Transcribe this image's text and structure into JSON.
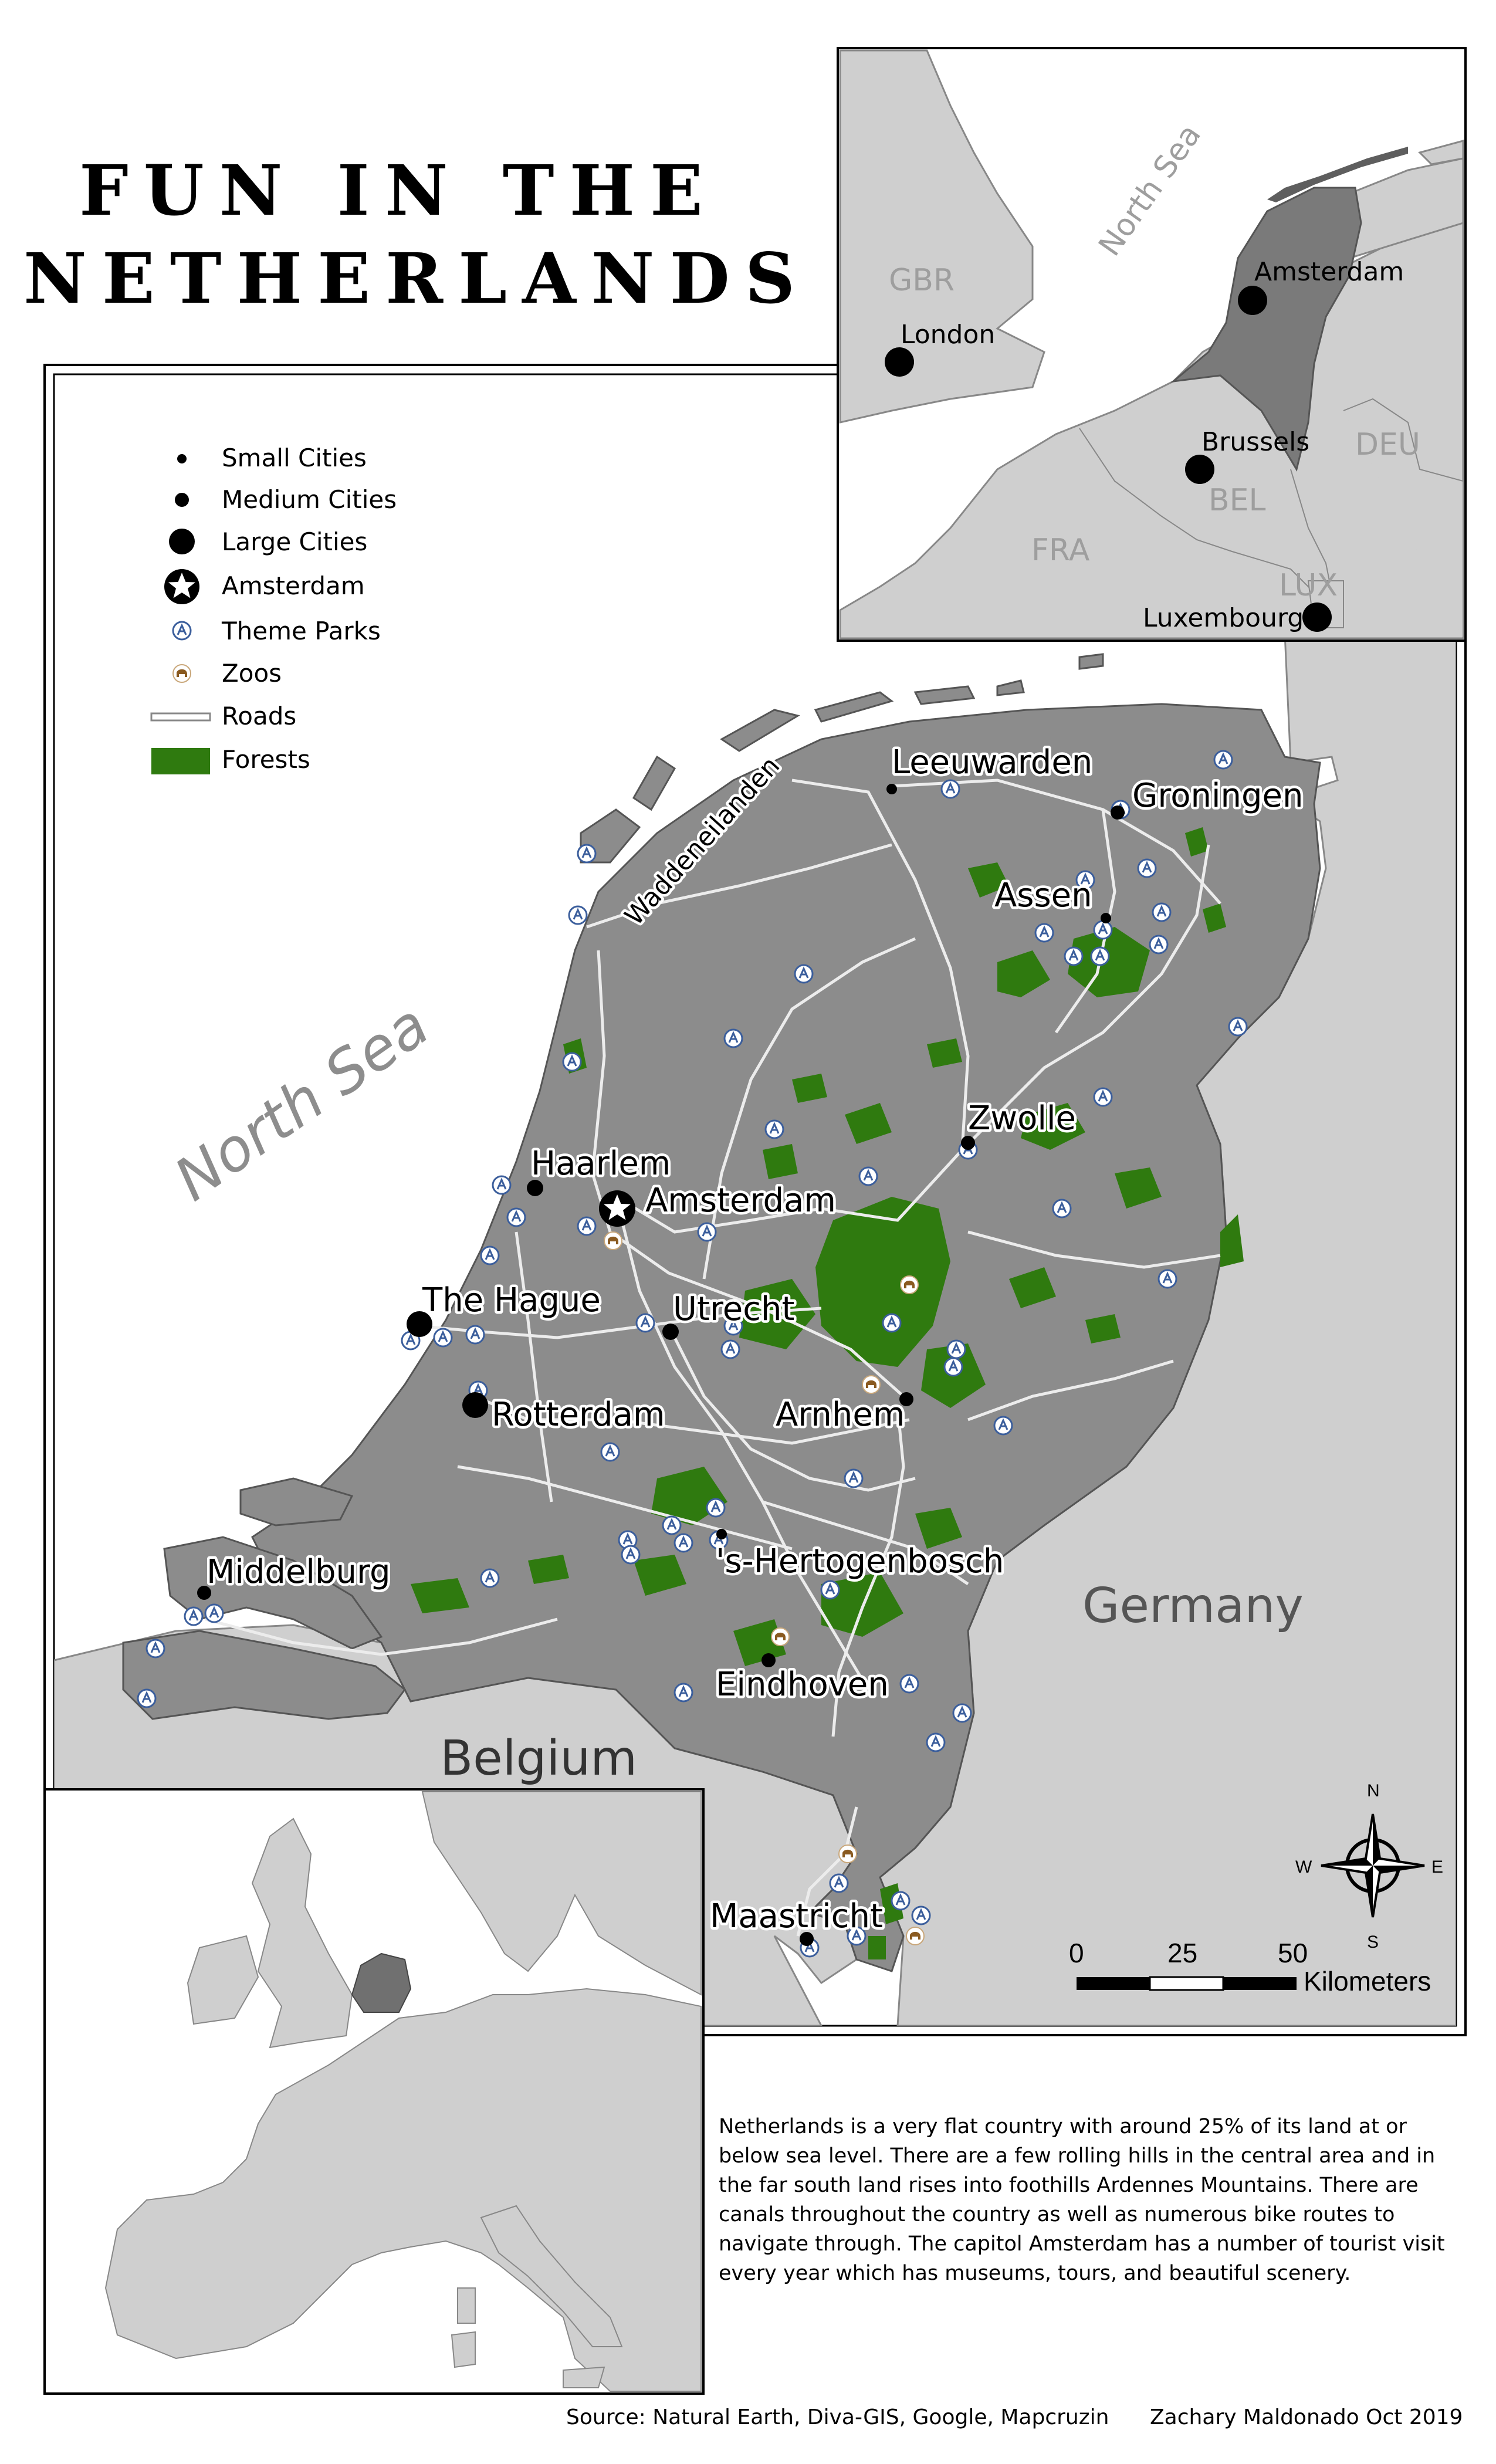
{
  "title": {
    "line1": "FUN IN THE",
    "line2": "NETHERLANDS"
  },
  "legend": {
    "small_cities": "Small Cities",
    "medium_cities": "Medium Cities",
    "large_cities": "Large Cities",
    "capital": "Amsterdam",
    "theme_parks": "Theme Parks",
    "zoos": "Zoos",
    "roads": "Roads",
    "forests": "Forests"
  },
  "main_map": {
    "sea_label": "North Sea",
    "islands_label": "Waddeneilanden",
    "countries": {
      "germany": "Germany",
      "belgium": "Belgium"
    },
    "cities": [
      {
        "id": "leeuwarden",
        "name": "Leeuwarden",
        "size": "small"
      },
      {
        "id": "groningen",
        "name": "Groningen",
        "size": "medium"
      },
      {
        "id": "assen",
        "name": "Assen",
        "size": "small"
      },
      {
        "id": "zwolle",
        "name": "Zwolle",
        "size": "medium"
      },
      {
        "id": "haarlem",
        "name": "Haarlem",
        "size": "medium"
      },
      {
        "id": "amsterdam",
        "name": "Amsterdam",
        "size": "capital"
      },
      {
        "id": "the-hague",
        "name": "The Hague",
        "size": "large"
      },
      {
        "id": "utrecht",
        "name": "Utrecht",
        "size": "medium"
      },
      {
        "id": "rotterdam",
        "name": "Rotterdam",
        "size": "large"
      },
      {
        "id": "arnhem",
        "name": "Arnhem",
        "size": "medium"
      },
      {
        "id": "middelburg",
        "name": "Middelburg",
        "size": "medium"
      },
      {
        "id": "s-hertogenbosch",
        "name": "'s-Hertogenbosch",
        "size": "small"
      },
      {
        "id": "eindhoven",
        "name": "Eindhoven",
        "size": "medium"
      },
      {
        "id": "maastricht",
        "name": "Maastricht",
        "size": "medium"
      }
    ]
  },
  "inset_top": {
    "sea_label": "North Sea",
    "countries": {
      "gbr": "GBR",
      "deu": "DEU",
      "bel": "BEL",
      "fra": "FRA",
      "lux": "LUX"
    },
    "cities": {
      "london": "London",
      "amsterdam": "Amsterdam",
      "brussels": "Brussels",
      "luxembourg": "Luxembourg"
    }
  },
  "scale_bar": {
    "tick_0": "0",
    "tick_25": "25",
    "tick_50": "50",
    "unit": "Kilometers"
  },
  "compass": {
    "n": "N",
    "s": "S",
    "e": "E",
    "w": "W"
  },
  "description": "Netherlands is a very flat country with around 25% of its land at or below sea level. There are a few rolling hills in the central area and in the far south land rises into foothills Ardennes Mountains. There are canals throughout the country as well as numerous bike routes to navigate through. The capitol Amsterdam has a number of tourist visit every year which has museums, tours, and beautiful scenery.",
  "footer": {
    "source": "Source: Natural Earth, Diva-GIS, Google, Mapcruzin",
    "author": "Zachary Maldonado Oct 2019"
  },
  "colors": {
    "land_netherlands": "#8c8c8c",
    "land_other": "#cfcfcf",
    "sea": "#ffffff",
    "forest": "#2f7a0f",
    "road": "#ececec",
    "zoo": "#a0784a",
    "theme_park": "#3b5e9c"
  }
}
